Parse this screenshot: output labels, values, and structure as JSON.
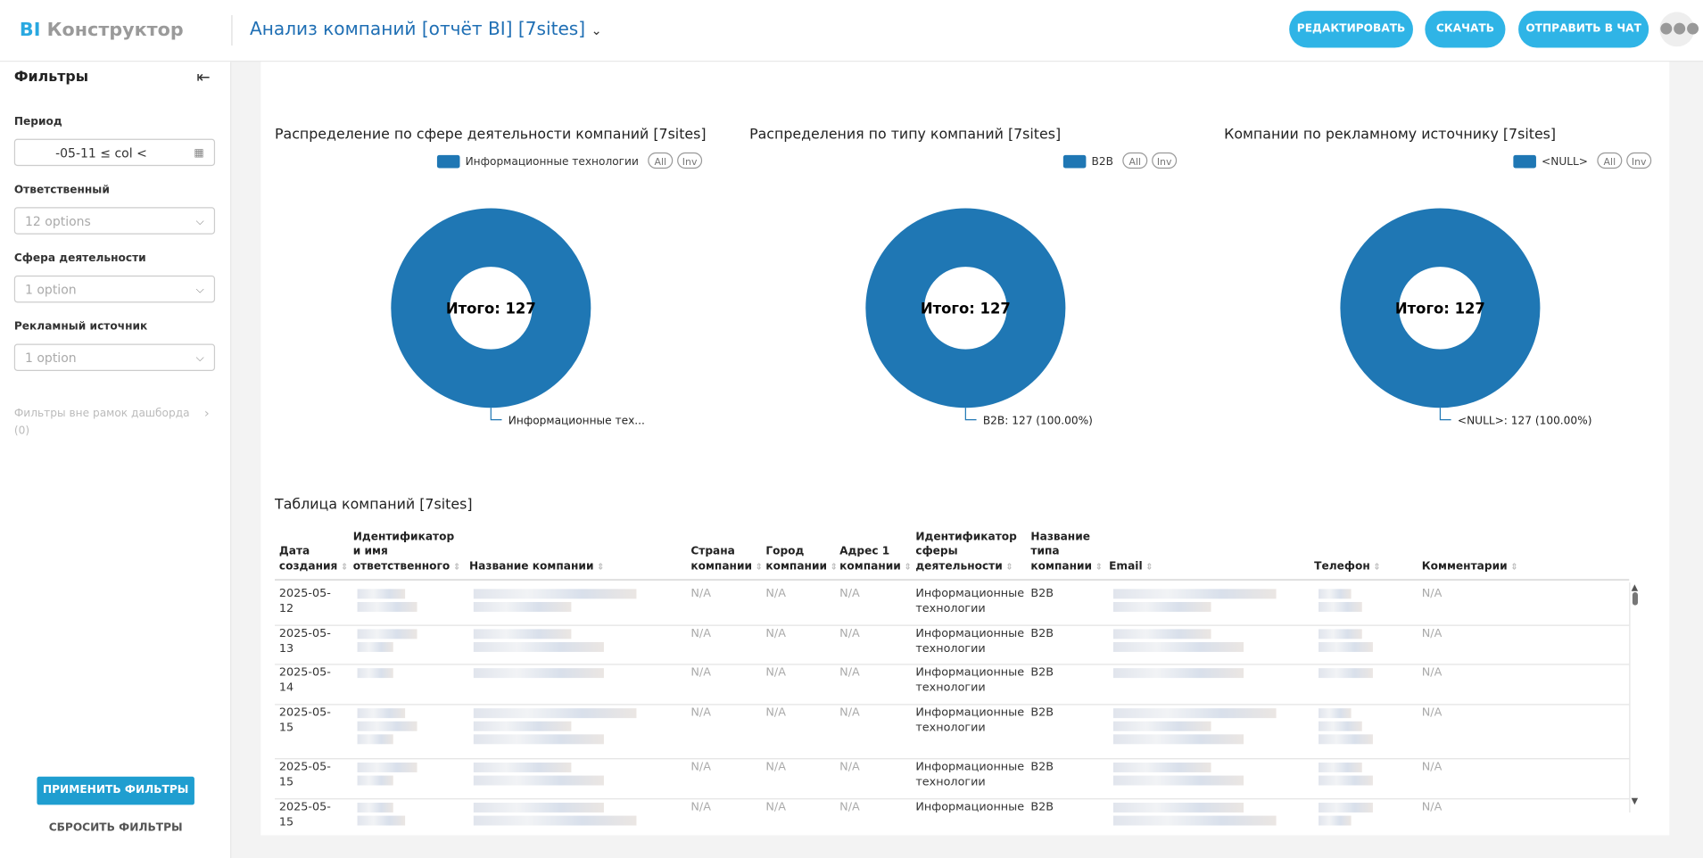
{
  "header": {
    "logo_bi": "BI",
    "logo_text": "Конструктор",
    "title": "Анализ компаний [отчёт BI] [7sites]",
    "buttons": [
      "РЕДАКТИРОВАТЬ",
      "СКАЧАТЬ",
      "ОТПРАВИТЬ В ЧАТ"
    ]
  },
  "sidebar": {
    "title": "Фильтры",
    "filters": [
      {
        "label": "Период",
        "value": "-05-11 ≤ col <"
      },
      {
        "label": "Ответственный",
        "value": "12 options"
      },
      {
        "label": "Сфера деятельности",
        "value": "1 option"
      },
      {
        "label": "Рекламный источник",
        "value": "1 option"
      }
    ],
    "outside": "Фильтры вне рамок дашборда",
    "outside_count": "(0)",
    "apply": "ПРИМЕНИТЬ ФИЛЬТРЫ",
    "reset": "СБРОСИТЬ ФИЛЬТРЫ"
  },
  "charts": [
    {
      "type": "donut",
      "title": "Распределение по сфере деятельности компаний [7sites]",
      "legend": "Информационные технологии",
      "legend_buttons": [
        "All",
        "Inv"
      ],
      "color": "#1f77b4",
      "values": [
        127
      ],
      "center_label": "Итого: 127",
      "slice_label": "Информационные тех..."
    },
    {
      "type": "donut",
      "title": "Распределения по типу компаний [7sites]",
      "legend": "B2B",
      "legend_buttons": [
        "All",
        "Inv"
      ],
      "color": "#1f77b4",
      "values": [
        127
      ],
      "center_label": "Итого: 127",
      "slice_label": "B2B: 127 (100.00%)"
    },
    {
      "type": "donut",
      "title": "Компании по рекламному источнику [7sites]",
      "legend": "<NULL>",
      "legend_buttons": [
        "All",
        "Inv"
      ],
      "color": "#1f77b4",
      "values": [
        127
      ],
      "center_label": "Итого: 127",
      "slice_label": "<NULL>: 127 (100.00%)"
    }
  ],
  "table": {
    "title": "Таблица компаний [7sites]",
    "columns": [
      "Дата создания",
      "Идентификатор и имя ответственного",
      "Название компании",
      "Страна компании",
      "Город компании",
      "Адрес 1 компании",
      "Идентификатор сферы деятельности",
      "Название типа компании",
      "Email",
      "Телефон",
      "Комментарии"
    ],
    "rows": [
      {
        "date": "2025-05-12",
        "country": "N/A",
        "city": "N/A",
        "address": "N/A",
        "sphere": "Информационные технологии",
        "type": "B2B",
        "comment": "N/A"
      },
      {
        "date": "2025-05-13",
        "country": "N/A",
        "city": "N/A",
        "address": "N/A",
        "sphere": "Информационные технологии",
        "type": "B2B",
        "comment": "N/A"
      },
      {
        "date": "2025-05-14",
        "country": "N/A",
        "city": "N/A",
        "address": "N/A",
        "sphere": "Информационные технологии",
        "type": "B2B",
        "comment": "N/A"
      },
      {
        "date": "2025-05-15",
        "country": "N/A",
        "city": "N/A",
        "address": "N/A",
        "sphere": "Информационные технологии",
        "type": "B2B",
        "comment": "N/A"
      },
      {
        "date": "2025-05-15",
        "country": "N/A",
        "city": "N/A",
        "address": "N/A",
        "sphere": "Информационные технологии",
        "type": "B2B",
        "comment": "N/A"
      },
      {
        "date": "2025-05-15",
        "country": "N/A",
        "city": "N/A",
        "address": "N/A",
        "sphere": "Информационные",
        "type": "B2B",
        "comment": "N/A"
      }
    ]
  }
}
